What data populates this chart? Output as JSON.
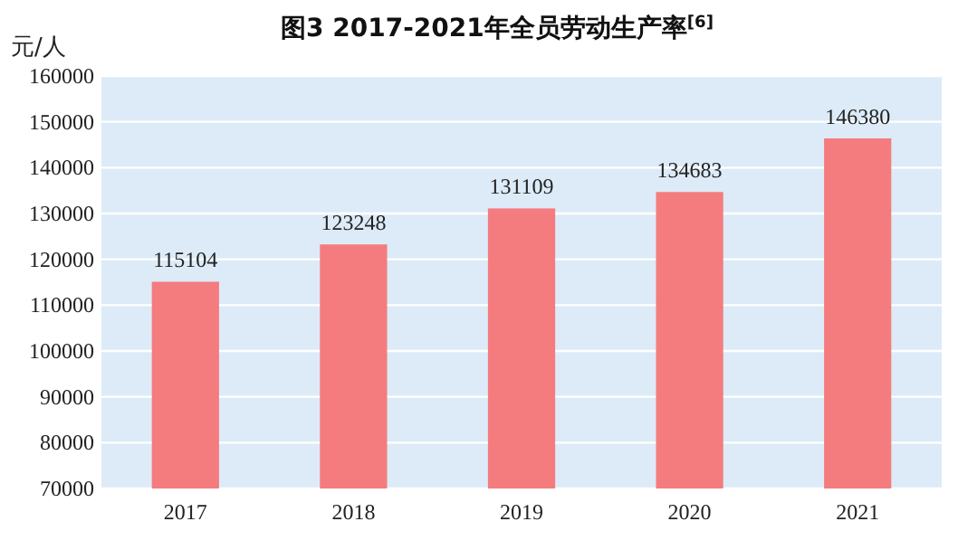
{
  "chart_data": {
    "type": "bar",
    "title": "图3  2017-2021年全员劳动生产率$^{[6]}$",
    "ylabel": "元/人",
    "categories": [
      "2017",
      "2018",
      "2019",
      "2020",
      "2021"
    ],
    "values": [
      115104,
      123248,
      131109,
      134683,
      146380
    ],
    "color": "#f47c7e",
    "data_labels": true,
    "grid": "y",
    "ylim": [
      70000,
      160000
    ],
    "yticks": [
      70000,
      80000,
      90000,
      100000,
      110000,
      120000,
      130000,
      140000,
      150000,
      160000
    ]
  }
}
